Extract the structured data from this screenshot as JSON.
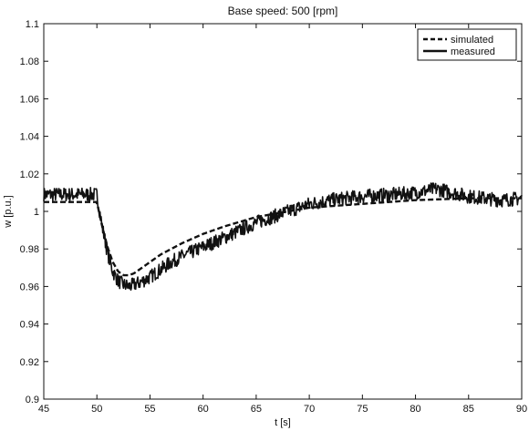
{
  "chart_data": {
    "type": "line",
    "title": "Base speed: 500 [rpm]",
    "xlabel": "t [s]",
    "ylabel": "w [p.u.]",
    "xlim": [
      45,
      90
    ],
    "ylim": [
      0.9,
      1.1
    ],
    "x_ticks": [
      45,
      50,
      55,
      60,
      65,
      70,
      75,
      80,
      85,
      90
    ],
    "y_ticks": [
      0.9,
      0.92,
      0.94,
      0.96,
      0.98,
      1,
      1.02,
      1.04,
      1.06,
      1.08,
      1.1
    ],
    "grid": false,
    "legend_position": "top-right",
    "series": [
      {
        "name": "simulated",
        "style": "dashed",
        "color": "#111111",
        "x": [
          45,
          50,
          50.5,
          51,
          51.5,
          52,
          52.5,
          53,
          53.5,
          54,
          55,
          56,
          57,
          58,
          60,
          62,
          65,
          68,
          70,
          75,
          80,
          85,
          90
        ],
        "y": [
          1.005,
          1.005,
          0.992,
          0.981,
          0.973,
          0.968,
          0.966,
          0.966,
          0.967,
          0.969,
          0.973,
          0.977,
          0.98,
          0.983,
          0.988,
          0.992,
          0.997,
          1.0,
          1.002,
          1.004,
          1.006,
          1.007,
          1.007
        ]
      },
      {
        "name": "measured",
        "style": "solid",
        "color": "#111111",
        "x": [
          45,
          47,
          49,
          50,
          50.5,
          51,
          51.5,
          52,
          52.5,
          53,
          53.5,
          54,
          55,
          56,
          57,
          58,
          60,
          62,
          65,
          68,
          70,
          72,
          75,
          78,
          80,
          82,
          85,
          88,
          90
        ],
        "y": [
          1.009,
          1.009,
          1.009,
          1.009,
          0.992,
          0.978,
          0.968,
          0.963,
          0.961,
          0.96,
          0.961,
          0.962,
          0.965,
          0.969,
          0.973,
          0.976,
          0.981,
          0.986,
          0.994,
          1.0,
          1.004,
          1.006,
          1.008,
          1.009,
          1.01,
          1.012,
          1.008,
          1.006,
          1.007
        ]
      }
    ]
  }
}
